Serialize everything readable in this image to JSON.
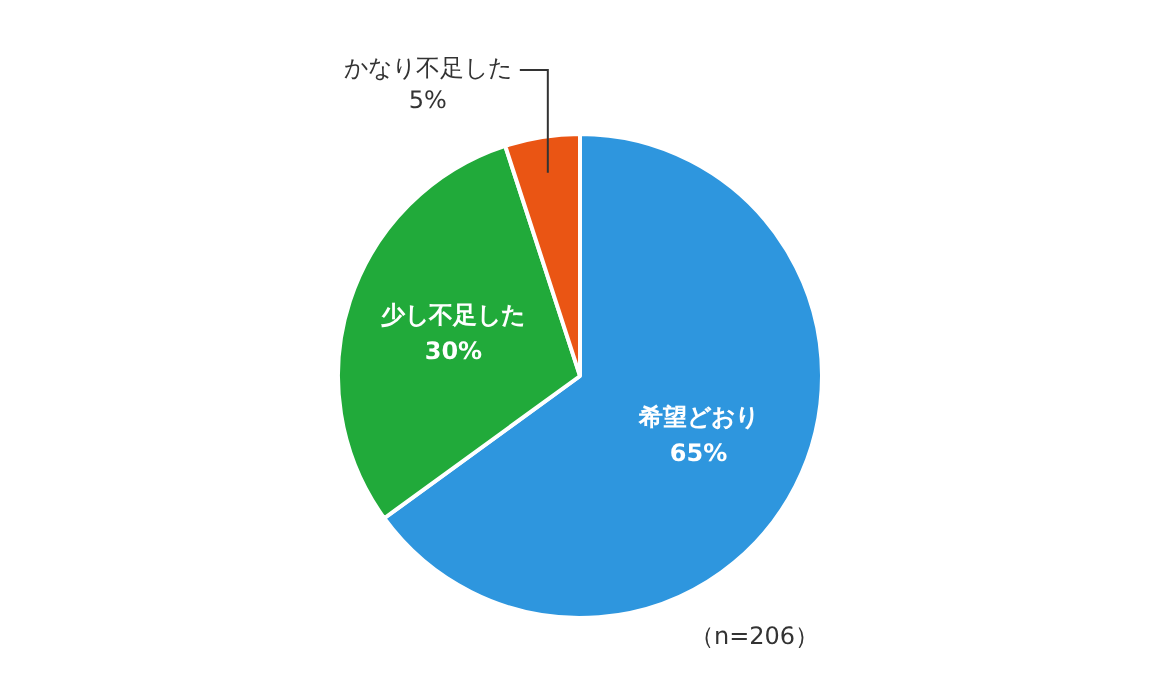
{
  "chart_data": {
    "type": "pie",
    "categories": [
      "希望どおり",
      "少し不足した",
      "かなり不足した"
    ],
    "values": [
      65,
      30,
      5
    ],
    "value_labels": [
      "65%",
      "30%",
      "5%"
    ],
    "colors": [
      "#2e96de",
      "#21aa3a",
      "#ea5514"
    ],
    "legend": false,
    "annotations": [
      "（n=206）"
    ]
  }
}
